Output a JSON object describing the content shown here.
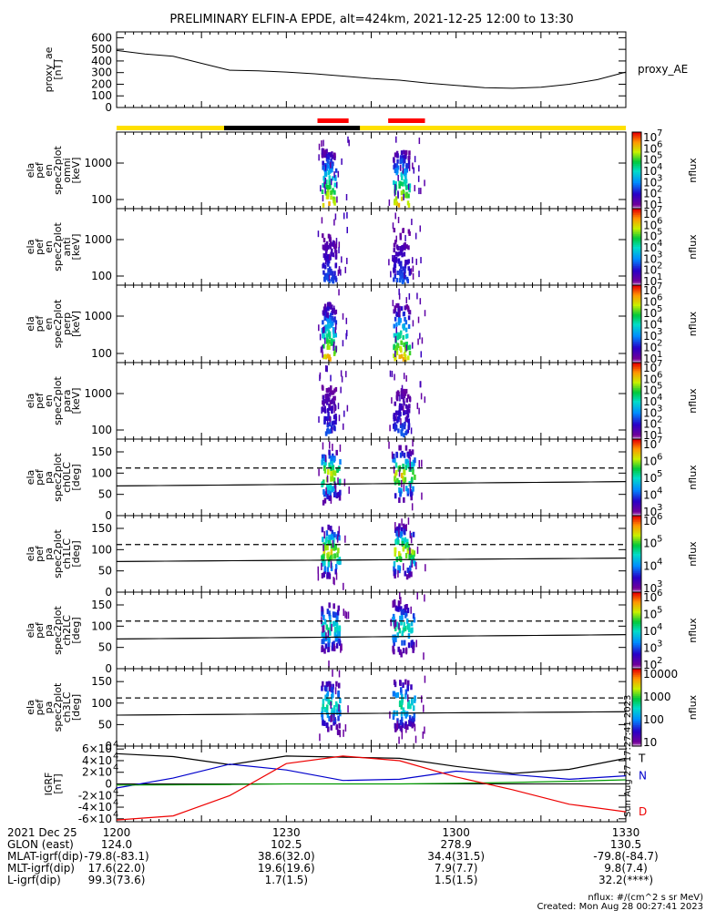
{
  "title": "PRELIMINARY ELFIN-A EPDE, alt=424km, 2021-12-25 12:00 to 13:30",
  "colors": {
    "yellow": "#ffe000",
    "black": "#000000",
    "red": "#ff0000",
    "trace_black": "#000000",
    "trace_blue": "#0000cc",
    "trace_green": "#009900",
    "trace_red": "#ee0000"
  },
  "panels": [
    {
      "ylabel": [
        "proxy_ae",
        "[nT]"
      ],
      "ticks": [
        "600",
        "500",
        "400",
        "300",
        "200",
        "100",
        "0"
      ],
      "side": "proxy_AE"
    },
    {
      "ylabel": [
        "ela",
        "pef",
        "en",
        "spec2plot",
        "omni",
        "[keV]"
      ],
      "ticks": [
        "1000",
        "100"
      ],
      "cbar_ticks": [
        "10",
        "10",
        "10",
        "10",
        "10",
        "10",
        "10"
      ],
      "cbar_exp": [
        "7",
        "6",
        "5",
        "4",
        "3",
        "2",
        "1"
      ],
      "cbar_label": "nflux"
    },
    {
      "ylabel": [
        "ela",
        "pef",
        "en",
        "spec2plot",
        "anti",
        "[keV]"
      ],
      "ticks": [
        "1000",
        "100"
      ],
      "cbar_ticks": [
        "10",
        "10",
        "10",
        "10",
        "10",
        "10",
        "10"
      ],
      "cbar_exp": [
        "7",
        "6",
        "5",
        "4",
        "3",
        "2",
        "1"
      ],
      "cbar_label": "nflux"
    },
    {
      "ylabel": [
        "ela",
        "pef",
        "en",
        "spec2plot",
        "perp",
        "[keV]"
      ],
      "ticks": [
        "1000",
        "100"
      ],
      "cbar_ticks": [
        "10",
        "10",
        "10",
        "10",
        "10",
        "10",
        "10"
      ],
      "cbar_exp": [
        "7",
        "6",
        "5",
        "4",
        "3",
        "2",
        "1"
      ],
      "cbar_label": "nflux"
    },
    {
      "ylabel": [
        "ela",
        "pef",
        "en",
        "spec2plot",
        "para",
        "[keV]"
      ],
      "ticks": [
        "1000",
        "100"
      ],
      "cbar_ticks": [
        "10",
        "10",
        "10",
        "10",
        "10",
        "10",
        "10"
      ],
      "cbar_exp": [
        "7",
        "6",
        "5",
        "4",
        "3",
        "2",
        "1"
      ],
      "cbar_label": "nflux"
    },
    {
      "ylabel": [
        "ela",
        "pef",
        "pa",
        "spec2plot",
        "ch0LC",
        "[deg]"
      ],
      "ticks": [
        "150",
        "100",
        "50",
        "0"
      ],
      "cbar_ticks": [
        "10",
        "10",
        "10",
        "10",
        "10"
      ],
      "cbar_exp": [
        "7",
        "6",
        "5",
        "4",
        "3"
      ],
      "cbar_label": "nflux"
    },
    {
      "ylabel": [
        "ela",
        "pef",
        "pa",
        "spec2plot",
        "ch1LC",
        "[deg]"
      ],
      "ticks": [
        "150",
        "100",
        "50",
        "0"
      ],
      "cbar_ticks": [
        "10",
        "10",
        "10",
        "10"
      ],
      "cbar_exp": [
        "6",
        "5",
        "4",
        "3"
      ],
      "cbar_label": "nflux"
    },
    {
      "ylabel": [
        "ela",
        "pef",
        "pa",
        "spec2plot",
        "ch2LC",
        "[deg]"
      ],
      "ticks": [
        "150",
        "100",
        "50",
        "0"
      ],
      "cbar_ticks": [
        "10",
        "10",
        "10",
        "10",
        "10"
      ],
      "cbar_exp": [
        "6",
        "5",
        "4",
        "3",
        "2"
      ],
      "cbar_label": "nflux"
    },
    {
      "ylabel": [
        "ela",
        "pef",
        "pa",
        "spec2plot",
        "ch3LC",
        "[deg]"
      ],
      "ticks": [
        "150",
        "100",
        "50",
        "0"
      ],
      "cbar_ticks": [
        "10000",
        "1000",
        "100",
        "10"
      ],
      "cbar_exp": [
        "",
        "",
        "",
        ""
      ],
      "cbar_label": "nflux"
    },
    {
      "ylabel": [
        "IGRF",
        "[nT]"
      ],
      "ticks": [
        "6×10",
        "4×10",
        "2×10",
        "0",
        "-2×10",
        "-4×10",
        "-6×10"
      ],
      "tick_exp": "4",
      "side_letters": [
        "T",
        "N",
        "D"
      ]
    }
  ],
  "footer": {
    "rows": [
      {
        "label": "2021 Dec 25",
        "vals": [
          "1200",
          "1230",
          "1300",
          "1330"
        ]
      },
      {
        "label": "GLON (east)",
        "vals": [
          "124.0",
          "102.5",
          "278.9",
          "130.5"
        ]
      },
      {
        "label": "MLAT-igrf(dip)",
        "vals": [
          "-79.8(-83.1)",
          "38.6(32.0)",
          "34.4(31.5)",
          "-79.8(-84.7)"
        ]
      },
      {
        "label": "MLT-igrf(dip)",
        "vals": [
          "17.6(22.0)",
          "19.6(19.6)",
          "7.9(7.7)",
          "9.8(7.4)"
        ]
      },
      {
        "label": "L-igrf(dip)",
        "vals": [
          "99.3(73.6)",
          "1.7(1.5)",
          "1.5(1.5)",
          "32.2(****)"
        ]
      }
    ],
    "units_note": "nflux: #/(cm^2 s sr MeV)",
    "created": "Created: Mon Aug 28 00:27:41 2023",
    "side_stamp": "Sun Aug 27 17:27:41 2023"
  },
  "chart_data": {
    "type": "heatmap",
    "title": "PRELIMINARY ELFIN-A EPDE, alt=424km, 2021-12-25 12:00 to 13:30",
    "x_ticks": [
      "1200",
      "1230",
      "1300",
      "1330"
    ],
    "proxy_ae": {
      "ylim": [
        0,
        650
      ],
      "x_min": [
        0,
        5,
        10,
        15,
        20,
        25,
        30,
        35,
        40,
        45,
        50,
        55,
        60,
        65,
        70,
        75,
        80,
        85,
        90
      ],
      "values": [
        490,
        460,
        440,
        380,
        320,
        315,
        305,
        290,
        270,
        250,
        235,
        210,
        190,
        170,
        165,
        175,
        200,
        240,
        305
      ]
    },
    "science_zones_min": [
      [
        35.5,
        41.0
      ],
      [
        48.0,
        54.5
      ]
    ],
    "igrf": {
      "ylim": [
        -65000,
        65000
      ],
      "x_min": [
        0,
        10,
        20,
        30,
        40,
        50,
        60,
        70,
        80,
        90
      ],
      "T": [
        52000,
        47000,
        33000,
        48000,
        46000,
        44000,
        30000,
        18000,
        25000,
        44000
      ],
      "N": [
        -7000,
        10000,
        34000,
        24000,
        6000,
        8000,
        22000,
        16000,
        8000,
        14000
      ],
      "D": [
        -62000,
        -55000,
        -20000,
        35000,
        48000,
        40000,
        12000,
        -10000,
        -35000,
        -48000
      ],
      "Z": [
        -2000,
        -1500,
        -1000,
        0,
        0,
        0,
        1000,
        2500,
        4500,
        7000
      ]
    }
  }
}
